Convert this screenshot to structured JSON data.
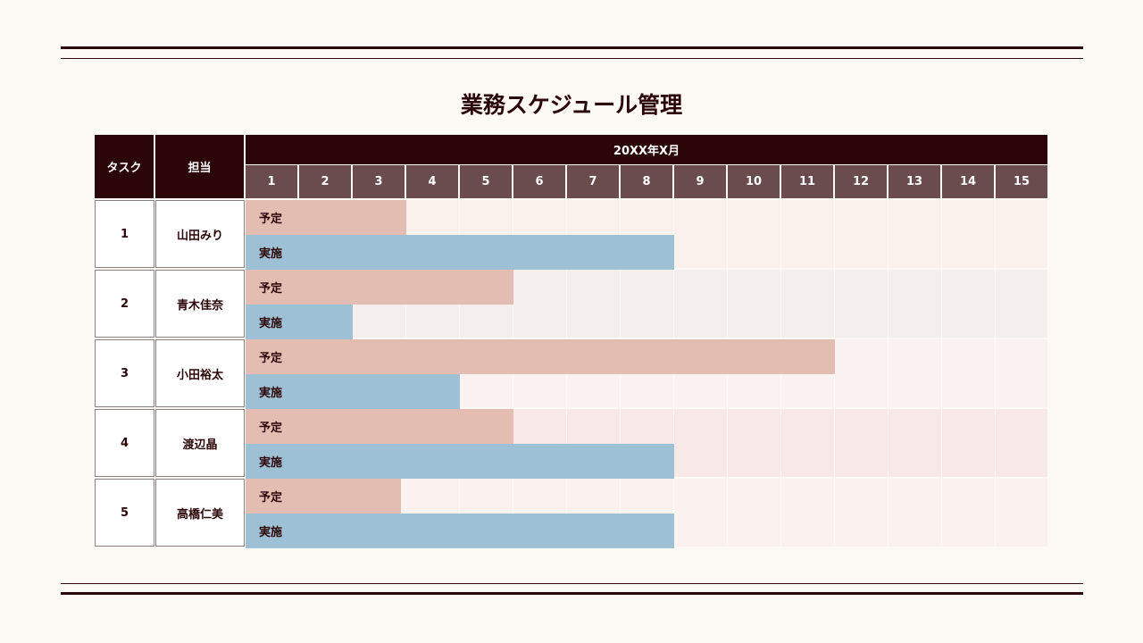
{
  "title": "業務スケジュール管理",
  "header": {
    "task_label": "タスク",
    "owner_label": "担当",
    "month_label": "20XX年X月"
  },
  "colors": {
    "dark": "#2b0508",
    "day_header": "#6b4c4e",
    "plan": "#e3bdb2",
    "actual": "#9ec0d5"
  },
  "chart_data": {
    "type": "gantt",
    "days": [
      "1",
      "2",
      "3",
      "4",
      "5",
      "6",
      "7",
      "8",
      "9",
      "10",
      "11",
      "12",
      "13",
      "14",
      "15"
    ],
    "plan_label": "予定",
    "actual_label": "実施",
    "tasks": [
      {
        "id": "1",
        "owner": "山田みり",
        "plan_end": 3,
        "actual_end": 8
      },
      {
        "id": "2",
        "owner": "青木佳奈",
        "plan_end": 5,
        "actual_end": 2
      },
      {
        "id": "3",
        "owner": "小田裕太",
        "plan_end": 11,
        "actual_end": 4
      },
      {
        "id": "4",
        "owner": "渡辺晶",
        "plan_end": 5,
        "actual_end": 8
      },
      {
        "id": "5",
        "owner": "高橋仁美",
        "plan_end": 2.9,
        "actual_end": 8
      }
    ]
  }
}
